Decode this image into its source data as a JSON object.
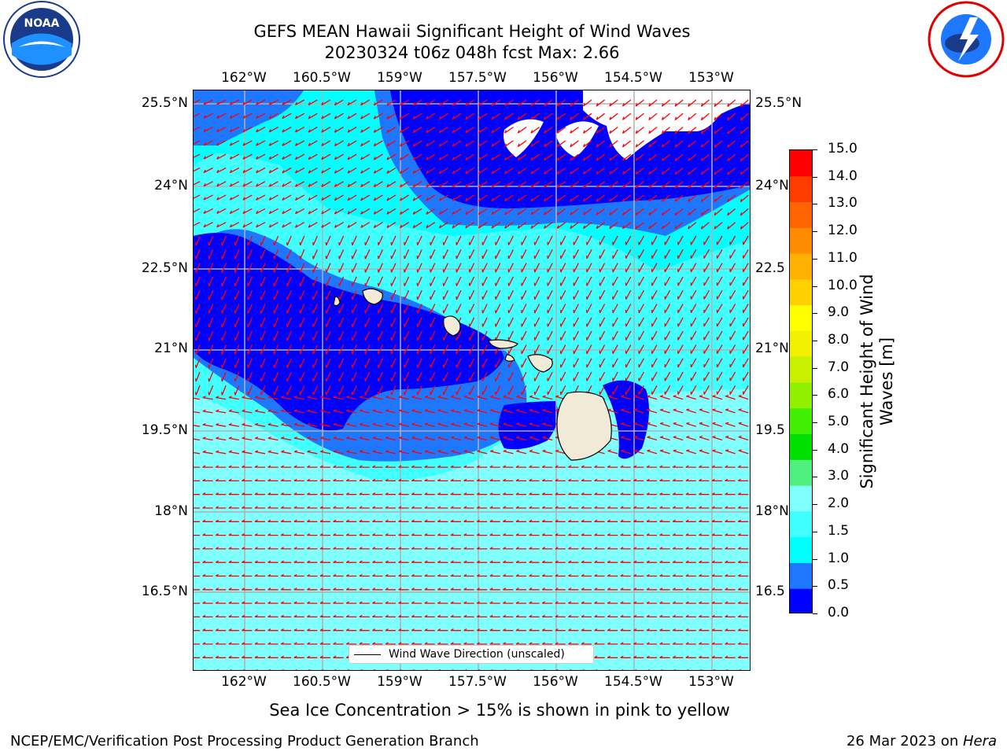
{
  "header": {
    "title": "GEFS MEAN Hawaii Significant Height of Wind Waves",
    "subtitle": "20230324 t06z 048h fcst   Max: 2.66"
  },
  "logos": {
    "left": "noaa-logo",
    "right": "nws-logo"
  },
  "map": {
    "lon_labels": [
      "162°W",
      "160.5°W",
      "159°W",
      "157.5°W",
      "156°W",
      "154.5°W",
      "153°W"
    ],
    "lat_labels": [
      "25.5°N",
      "24°N",
      "22.5°N",
      "21°N",
      "19.5°N",
      "18°N",
      "16.5°N"
    ],
    "lat_labels_right": [
      "25.5°N",
      "24°N",
      "22.5",
      "21°N",
      "19.5",
      "18°N",
      "16.5"
    ],
    "legend_label": "Wind Wave Direction (unscaled)",
    "colors": {
      "water_deep": "#0000ff",
      "water_mid": "#1e90ff",
      "water_cyan": "#00ffff",
      "water_light": "#40ffff",
      "water_pale": "#80ffff",
      "land": "#f0ead6",
      "arrow": "#ff0000",
      "grid": "#b0b0b0"
    }
  },
  "colorbar": {
    "label": "Significant Height of Wind Waves [m]",
    "ticks": [
      "15.0",
      "14.0",
      "13.0",
      "12.0",
      "11.0",
      "10.0",
      "9.0",
      "8.0",
      "7.0",
      "6.0",
      "5.0",
      "4.0",
      "3.0",
      "2.0",
      "1.5",
      "1.0",
      "0.5",
      "0.0"
    ],
    "colors": [
      "#0000ff",
      "#1e78ff",
      "#00ffff",
      "#40ffff",
      "#80ffff",
      "#50f080",
      "#00e000",
      "#40f000",
      "#90f000",
      "#c8f000",
      "#f0f000",
      "#ffff00",
      "#ffd000",
      "#ffb000",
      "#ff8c00",
      "#ff6400",
      "#ff3c00",
      "#ff0000"
    ]
  },
  "footer": {
    "ice_note": "Sea Ice Concentration > 15% is shown in pink to yellow",
    "left": "NCEP/EMC/Verification Post Processing Product Generation Branch",
    "right_date": "26 Mar 2023 on ",
    "right_host": "Hera"
  }
}
